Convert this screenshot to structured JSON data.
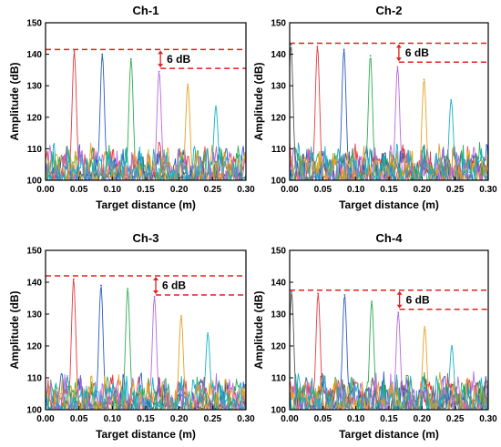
{
  "figure": {
    "background": "#ffffff"
  },
  "series_colors": [
    "#555555",
    "#e8383d",
    "#2b59c3",
    "#2eaa52",
    "#b768e0",
    "#e6a020",
    "#15b0c5"
  ],
  "ref_color": "#e02020",
  "chart_data": [
    {
      "type": "line",
      "title": "Ch-1",
      "xlabel": "Target distance (m)",
      "ylabel": "Amplitude (dB)",
      "xlim": [
        0,
        0.3
      ],
      "ylim": [
        100,
        150
      ],
      "xticks": [
        "0.00",
        "0.05",
        "0.10",
        "0.15",
        "0.20",
        "0.25",
        "0.30"
      ],
      "yticks": [
        "100",
        "110",
        "120",
        "130",
        "140",
        "150"
      ],
      "grid": false,
      "peaks": [
        {
          "x": 0.043,
          "y": 141,
          "color": "#e8383d"
        },
        {
          "x": 0.085,
          "y": 140,
          "color": "#2b59c3"
        },
        {
          "x": 0.128,
          "y": 138.5,
          "color": "#2eaa52"
        },
        {
          "x": 0.17,
          "y": 134.5,
          "color": "#b768e0"
        },
        {
          "x": 0.213,
          "y": 130.5,
          "color": "#e6a020"
        },
        {
          "x": 0.255,
          "y": 123.5,
          "color": "#15b0c5"
        }
      ],
      "reference_lines": {
        "upper": 141.5,
        "lower": 135.5,
        "label": "6 dB",
        "marker_x": 0.172
      }
    },
    {
      "type": "line",
      "title": "Ch-2",
      "xlabel": "Target distance (m)",
      "ylabel": "Amplitude (dB)",
      "xlim": [
        0,
        0.3
      ],
      "ylim": [
        100,
        150
      ],
      "xticks": [
        "0.00",
        "0.05",
        "0.10",
        "0.15",
        "0.20",
        "0.25",
        "0.30"
      ],
      "yticks": [
        "100",
        "110",
        "120",
        "130",
        "140",
        "150"
      ],
      "grid": false,
      "peaks": [
        {
          "x": 0.002,
          "y": 143,
          "color": "#555555"
        },
        {
          "x": 0.042,
          "y": 142.5,
          "color": "#e8383d"
        },
        {
          "x": 0.082,
          "y": 141.5,
          "color": "#2b59c3"
        },
        {
          "x": 0.122,
          "y": 139.5,
          "color": "#2eaa52"
        },
        {
          "x": 0.163,
          "y": 136,
          "color": "#b768e0"
        },
        {
          "x": 0.203,
          "y": 132,
          "color": "#e6a020"
        },
        {
          "x": 0.244,
          "y": 125.5,
          "color": "#15b0c5"
        }
      ],
      "reference_lines": {
        "upper": 143.5,
        "lower": 137.5,
        "label": "6 dB",
        "marker_x": 0.165
      }
    },
    {
      "type": "line",
      "title": "Ch-3",
      "xlabel": "Target distance (m)",
      "ylabel": "Amplitude (dB)",
      "xlim": [
        0,
        0.3
      ],
      "ylim": [
        100,
        150
      ],
      "xticks": [
        "0.00",
        "0.05",
        "0.10",
        "0.15",
        "0.20",
        "0.25",
        "0.30"
      ],
      "yticks": [
        "100",
        "110",
        "120",
        "130",
        "140",
        "150"
      ],
      "grid": false,
      "peaks": [
        {
          "x": 0.042,
          "y": 141,
          "color": "#e8383d"
        },
        {
          "x": 0.083,
          "y": 139,
          "color": "#2b59c3"
        },
        {
          "x": 0.123,
          "y": 138,
          "color": "#2eaa52"
        },
        {
          "x": 0.163,
          "y": 135.5,
          "color": "#b768e0"
        },
        {
          "x": 0.203,
          "y": 129.5,
          "color": "#e6a020"
        },
        {
          "x": 0.243,
          "y": 124,
          "color": "#15b0c5"
        }
      ],
      "reference_lines": {
        "upper": 142,
        "lower": 136,
        "label": "6 dB",
        "marker_x": 0.165
      }
    },
    {
      "type": "line",
      "title": "Ch-4",
      "xlabel": "Target distance (m)",
      "ylabel": "Amplitude (dB)",
      "xlim": [
        0,
        0.3
      ],
      "ylim": [
        100,
        150
      ],
      "xticks": [
        "0.00",
        "0.05",
        "0.10",
        "0.15",
        "0.20",
        "0.25",
        "0.30"
      ],
      "yticks": [
        "100",
        "110",
        "120",
        "130",
        "140",
        "150"
      ],
      "grid": false,
      "peaks": [
        {
          "x": 0.003,
          "y": 137,
          "color": "#555555"
        },
        {
          "x": 0.043,
          "y": 136.5,
          "color": "#e8383d"
        },
        {
          "x": 0.083,
          "y": 136,
          "color": "#2b59c3"
        },
        {
          "x": 0.124,
          "y": 134,
          "color": "#2eaa52"
        },
        {
          "x": 0.164,
          "y": 130.5,
          "color": "#b768e0"
        },
        {
          "x": 0.204,
          "y": 126,
          "color": "#e6a020"
        },
        {
          "x": 0.245,
          "y": 120,
          "color": "#15b0c5"
        }
      ],
      "reference_lines": {
        "upper": 137.5,
        "lower": 131.5,
        "label": "6 dB",
        "marker_x": 0.166
      }
    }
  ]
}
